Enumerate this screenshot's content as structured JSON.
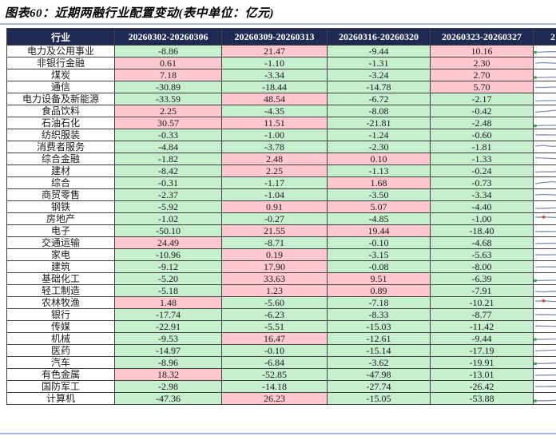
{
  "title": "图表60：近期两融行业配置变动(表中单位：亿元)",
  "colors": {
    "header_bg": "#1F2A52",
    "header_text": "#FFFFFF",
    "positive_bg": "#FFC7CE",
    "negative_bg": "#C6EFCE",
    "industry_bg": "#FFFFFF",
    "rule_blue": "#A6B5DF",
    "grid_line": "#3F3F3F",
    "spark_line": "#7F8FAE",
    "spark_dot_red": "#E03C31",
    "spark_dot_green": "#2E9E4F"
  },
  "table": {
    "columns": [
      "行业",
      "20260302-20260306",
      "20260309-20260313",
      "20260316-20260320",
      "20260323-20260327",
      "2"
    ],
    "rows": [
      {
        "industry": "电力及公用事业",
        "values": [
          -8.86,
          21.47,
          -9.44,
          10.16
        ],
        "spark": [
          0.35,
          0.4,
          0.45,
          0.4,
          0.45,
          0.5,
          0.45,
          0.5,
          0.55,
          0.6,
          0.55,
          0.6
        ],
        "dot": {
          "color": "green",
          "i": 0
        }
      },
      {
        "industry": "非银行金融",
        "values": [
          0.61,
          -1.1,
          -1.31,
          2.3
        ],
        "spark": [
          0.5,
          0.55,
          0.5,
          0.45,
          0.5,
          0.55,
          0.5,
          0.45,
          0.5,
          0.5,
          0.45,
          0.5
        ],
        "dot": null
      },
      {
        "industry": "煤炭",
        "values": [
          7.18,
          -3.34,
          -3.24,
          2.7
        ],
        "spark": [
          0.2,
          0.2,
          0.25,
          0.25,
          0.3,
          0.35,
          0.5,
          0.65,
          0.75,
          0.8,
          0.8,
          0.85
        ],
        "dot": {
          "color": "green",
          "i": 0
        }
      },
      {
        "industry": "通信",
        "values": [
          -30.89,
          -18.44,
          -14.78,
          5.7
        ],
        "spark": [
          0.45,
          0.45,
          0.5,
          0.45,
          0.45,
          0.5,
          0.45,
          0.45,
          0.45,
          0.5,
          0.45,
          0.45
        ],
        "dot": null
      },
      {
        "industry": "电力设备及新能源",
        "values": [
          -33.59,
          48.54,
          -6.72,
          -2.17
        ],
        "spark": [
          0.25,
          0.3,
          0.3,
          0.35,
          0.4,
          0.45,
          0.55,
          0.6,
          0.65,
          0.7,
          0.7,
          0.75
        ],
        "dot": null
      },
      {
        "industry": "食品饮料",
        "values": [
          2.25,
          -4.35,
          -8.08,
          -0.42
        ],
        "spark": [
          0.35,
          0.45,
          0.55,
          0.65,
          0.75,
          0.8,
          0.75,
          0.65,
          0.55,
          0.5,
          0.45,
          0.4
        ],
        "dot": {
          "color": "red",
          "i": 5
        }
      },
      {
        "industry": "石油石化",
        "values": [
          30.57,
          11.51,
          -21.81,
          -2.48
        ],
        "spark": [
          0.15,
          0.2,
          0.2,
          0.25,
          0.3,
          0.4,
          0.5,
          0.6,
          0.7,
          0.75,
          0.8,
          0.85
        ],
        "dot": {
          "color": "green",
          "i": 0
        }
      },
      {
        "industry": "纺织服装",
        "values": [
          -0.33,
          -1.0,
          -1.24,
          -0.6
        ],
        "spark": [
          0.5,
          0.52,
          0.5,
          0.48,
          0.5,
          0.52,
          0.55,
          0.52,
          0.5,
          0.52,
          0.5,
          0.52
        ],
        "dot": null
      },
      {
        "industry": "消费者服务",
        "values": [
          -4.84,
          -3.78,
          -2.3,
          -1.81
        ],
        "spark": [
          0.6,
          0.7,
          0.55,
          0.65,
          0.5,
          0.6,
          0.45,
          0.55,
          0.5,
          0.55,
          0.5,
          0.45
        ],
        "dot": null
      },
      {
        "industry": "综合金融",
        "values": [
          -1.82,
          2.48,
          0.1,
          -1.33
        ],
        "spark": [
          0.65,
          0.6,
          0.55,
          0.5,
          0.45,
          0.45,
          0.4,
          0.4,
          0.4,
          0.4,
          0.4,
          0.4
        ],
        "dot": null
      },
      {
        "industry": "建材",
        "values": [
          -8.42,
          2.25,
          -1.13,
          -0.24
        ],
        "spark": [
          0.35,
          0.4,
          0.38,
          0.45,
          0.42,
          0.5,
          0.48,
          0.55,
          0.52,
          0.58,
          0.6,
          0.65
        ],
        "dot": {
          "color": "red",
          "i": 11
        }
      },
      {
        "industry": "综合",
        "values": [
          -0.31,
          -1.17,
          1.68,
          -0.73
        ],
        "spark": [
          0.4,
          0.55,
          0.65,
          0.5,
          0.45,
          0.5,
          0.48,
          0.52,
          0.5,
          0.48,
          0.5,
          0.5
        ],
        "dot": null
      },
      {
        "industry": "商贸零售",
        "values": [
          -2.37,
          -1.04,
          -3.5,
          -3.34
        ],
        "spark": [
          0.5,
          0.55,
          0.5,
          0.45,
          0.52,
          0.48,
          0.53,
          0.5,
          0.47,
          0.52,
          0.5,
          0.48
        ],
        "dot": null
      },
      {
        "industry": "钢铁",
        "values": [
          -5.92,
          0.91,
          5.07,
          -4.4
        ],
        "spark": [
          0.3,
          0.32,
          0.35,
          0.4,
          0.45,
          0.5,
          0.55,
          0.62,
          0.68,
          0.72,
          0.7,
          0.75
        ],
        "dot": null
      },
      {
        "industry": "房地产",
        "values": [
          -1.02,
          -0.27,
          -4.85,
          -1.0
        ],
        "spark": [
          0.7,
          0.72,
          0.68,
          0.62,
          0.58,
          0.55,
          0.5,
          0.48,
          0.45,
          0.42,
          0.4,
          0.38
        ],
        "dot": {
          "color": "red",
          "i": 1
        }
      },
      {
        "industry": "电子",
        "values": [
          -50.1,
          21.55,
          19.44,
          -18.4
        ],
        "spark": [
          0.4,
          0.42,
          0.4,
          0.42,
          0.45,
          0.45,
          0.48,
          0.5,
          0.55,
          0.6,
          0.62,
          0.65
        ],
        "dot": null
      },
      {
        "industry": "交通运输",
        "values": [
          24.49,
          -8.71,
          -0.1,
          -4.68
        ],
        "spark": [
          0.4,
          0.42,
          0.45,
          0.44,
          0.48,
          0.5,
          0.52,
          0.5,
          0.55,
          0.58,
          0.56,
          0.6
        ],
        "dot": null
      },
      {
        "industry": "家电",
        "values": [
          -10.96,
          0.19,
          -3.15,
          -5.63
        ],
        "spark": [
          0.5,
          0.48,
          0.5,
          0.52,
          0.5,
          0.48,
          0.5,
          0.5,
          0.52,
          0.5,
          0.48,
          0.5
        ],
        "dot": null
      },
      {
        "industry": "建筑",
        "values": [
          -9.12,
          17.9,
          -0.08,
          -8.0
        ],
        "spark": [
          0.45,
          0.5,
          0.47,
          0.52,
          0.48,
          0.45,
          0.5,
          0.47,
          0.52,
          0.5,
          0.47,
          0.5
        ],
        "dot": null
      },
      {
        "industry": "基础化工",
        "values": [
          -5.2,
          33.63,
          9.51,
          -6.39
        ],
        "spark": [
          0.25,
          0.28,
          0.3,
          0.32,
          0.38,
          0.42,
          0.5,
          0.58,
          0.65,
          0.7,
          0.72,
          0.78
        ],
        "dot": {
          "color": "green",
          "i": 0
        }
      },
      {
        "industry": "轻工制造",
        "values": [
          -5.18,
          1.23,
          0.89,
          -7.91
        ],
        "spark": [
          0.4,
          0.35,
          0.42,
          0.38,
          0.45,
          0.42,
          0.48,
          0.5,
          0.52,
          0.55,
          0.58,
          0.6
        ],
        "dot": null
      },
      {
        "industry": "农林牧渔",
        "values": [
          1.48,
          -5.6,
          -7.18,
          -10.21
        ],
        "spark": [
          0.68,
          0.72,
          0.65,
          0.6,
          0.55,
          0.52,
          0.5,
          0.48,
          0.45,
          0.44,
          0.42,
          0.4
        ],
        "dot": {
          "color": "red",
          "i": 1
        }
      },
      {
        "industry": "银行",
        "values": [
          -17.74,
          -6.23,
          -8.33,
          -8.77
        ],
        "spark": [
          0.5,
          0.52,
          0.48,
          0.5,
          0.52,
          0.5,
          0.48,
          0.5,
          0.52,
          0.5,
          0.5,
          0.48
        ],
        "dot": null
      },
      {
        "industry": "传媒",
        "values": [
          -22.91,
          -5.51,
          -15.03,
          -11.42
        ],
        "spark": [
          0.58,
          0.56,
          0.55,
          0.52,
          0.5,
          0.5,
          0.48,
          0.46,
          0.45,
          0.44,
          0.42,
          0.42
        ],
        "dot": null
      },
      {
        "industry": "机械",
        "values": [
          -9.53,
          16.47,
          -12.61,
          -9.44
        ],
        "spark": [
          0.4,
          0.42,
          0.44,
          0.46,
          0.48,
          0.5,
          0.5,
          0.52,
          0.54,
          0.55,
          0.56,
          0.58
        ],
        "dot": {
          "color": "green",
          "i": 0
        }
      },
      {
        "industry": "医药",
        "values": [
          -14.97,
          -0.1,
          -15.14,
          -17.19
        ],
        "spark": [
          0.45,
          0.5,
          0.55,
          0.6,
          0.62,
          0.6,
          0.55,
          0.5,
          0.48,
          0.45,
          0.45,
          0.44
        ],
        "dot": null
      },
      {
        "industry": "汽车",
        "values": [
          -8.96,
          -6.84,
          -3.62,
          -19.91
        ],
        "spark": [
          0.35,
          0.38,
          0.42,
          0.45,
          0.5,
          0.55,
          0.58,
          0.6,
          0.6,
          0.62,
          0.6,
          0.62
        ],
        "dot": {
          "color": "green",
          "i": 0
        }
      },
      {
        "industry": "有色金属",
        "values": [
          18.32,
          -52.85,
          -47.98,
          -13.01
        ],
        "spark": [
          0.4,
          0.42,
          0.45,
          0.44,
          0.48,
          0.5,
          0.52,
          0.55,
          0.53,
          0.56,
          0.58,
          0.6
        ],
        "dot": null
      },
      {
        "industry": "国防军工",
        "values": [
          -2.98,
          -14.18,
          -27.74,
          -26.42
        ],
        "spark": [
          0.48,
          0.5,
          0.52,
          0.5,
          0.48,
          0.5,
          0.52,
          0.5,
          0.48,
          0.5,
          0.52,
          0.5
        ],
        "dot": null
      },
      {
        "industry": "计算机",
        "values": [
          -47.36,
          26.23,
          -15.05,
          -53.88
        ],
        "spark": [
          0.2,
          0.22,
          0.25,
          0.3,
          0.35,
          0.4,
          0.48,
          0.55,
          0.6,
          0.65,
          0.7,
          0.75
        ],
        "dot": {
          "color": "green",
          "i": 0
        }
      }
    ]
  }
}
